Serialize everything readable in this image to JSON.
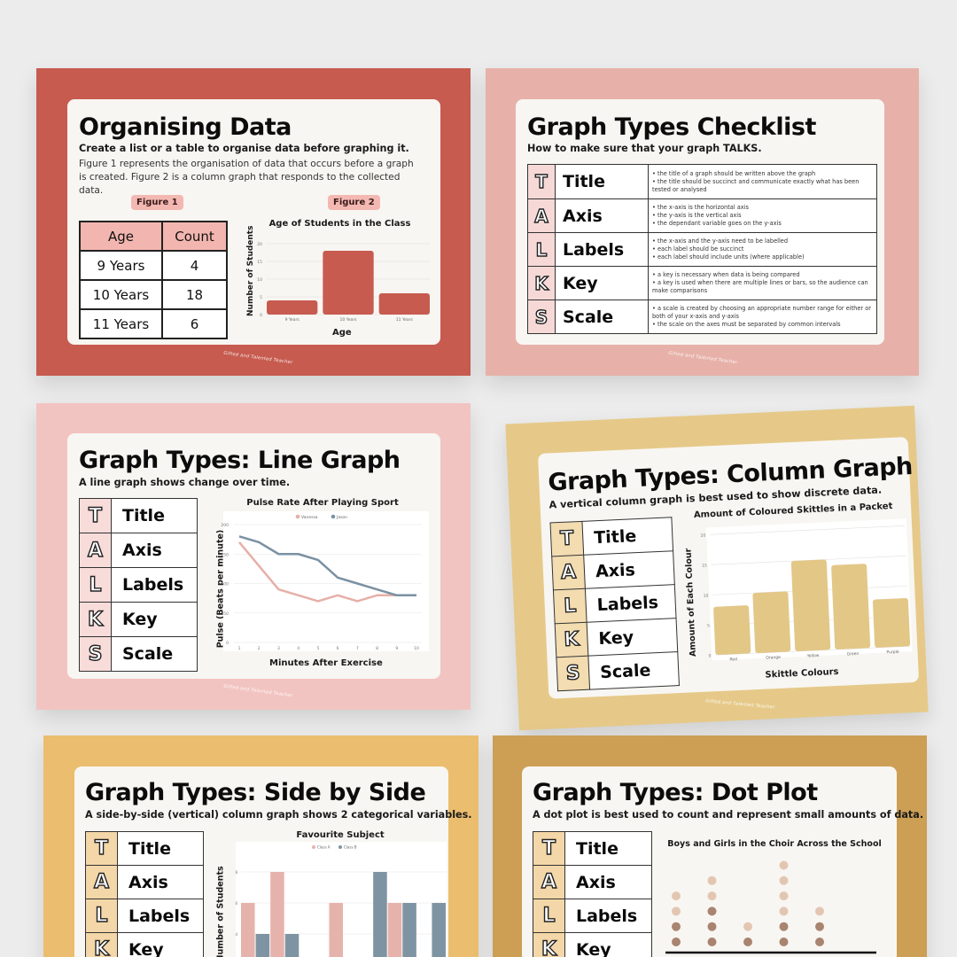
{
  "slides": {
    "organising": {
      "title": "Organising Data",
      "subtitle": "Create a list or a table to organise data before graphing it.",
      "paragraph": "Figure 1 represents the organisation of data that occurs before a graph is created. Figure 2 is a column graph that responds to the collected data.",
      "figure1_label": "Figure 1",
      "figure2_label": "Figure 2",
      "table": {
        "headers": [
          "Age",
          "Count"
        ],
        "rows": [
          [
            "9 Years",
            "4"
          ],
          [
            "10 Years",
            "18"
          ],
          [
            "11 Years",
            "6"
          ]
        ]
      },
      "footer": "Gifted and Talented Teacher",
      "bg_color": "#c75b4f"
    },
    "checklist": {
      "title": "Graph Types Checklist",
      "subtitle": "How to make sure that your graph TALKS.",
      "rows": [
        {
          "letter": "T",
          "word": "Title",
          "points": [
            "the title of a graph should be written above the graph",
            "the title should be succinct and communicate exactly what has been tested or analysed"
          ]
        },
        {
          "letter": "A",
          "word": "Axis",
          "points": [
            "the x-axis is the horizontal axis",
            "the y-axis is the vertical axis",
            "the dependant variable goes on the y-axis"
          ]
        },
        {
          "letter": "L",
          "word": "Labels",
          "points": [
            "the x-axis and the y-axis need to be labelled",
            "each label should be succinct",
            "each label should include units (where applicable)"
          ]
        },
        {
          "letter": "K",
          "word": "Key",
          "points": [
            "a key is necessary when data is being compared",
            "a key is used when there are multiple lines or bars, so the audience can make comparisons"
          ]
        },
        {
          "letter": "S",
          "word": "Scale",
          "points": [
            "a scale is created by choosing an appropriate number range for either or both of your x-axis and y-axis",
            "the scale on the axes must be separated by common intervals"
          ]
        }
      ],
      "footer": "Gifted and Talented Teacher",
      "bg_color": "#e7b1a9"
    },
    "line": {
      "title": "Graph Types: Line Graph",
      "subtitle": "A line graph shows change over time.",
      "talks": [
        "T",
        "A",
        "L",
        "K",
        "S"
      ],
      "talks_words": [
        "Title",
        "Axis",
        "Labels",
        "Key",
        "Scale"
      ],
      "footer": "Gifted and Talented Teacher",
      "bg_color": "#f2c4c1"
    },
    "column": {
      "title": "Graph Types: Column Graph",
      "subtitle": "A vertical column graph is best used to show discrete data.",
      "talks": [
        "T",
        "A",
        "L",
        "K",
        "S"
      ],
      "talks_words": [
        "Title",
        "Axis",
        "Labels",
        "Key",
        "Scale"
      ],
      "footer": "Gifted and Talented Teacher",
      "bg_color": "#e6c989"
    },
    "sidebyside": {
      "title": "Graph Types: Side by Side",
      "subtitle": "A side-by-side (vertical) column graph shows 2 categorical variables.",
      "talks": [
        "T",
        "A",
        "L",
        "K"
      ],
      "talks_words": [
        "Title",
        "Axis",
        "Labels",
        "Key"
      ],
      "bg_color": "#ebbd6e"
    },
    "dotplot": {
      "title": "Graph Types: Dot Plot",
      "subtitle": "A dot plot is best used to count and represent small amounts of data.",
      "talks": [
        "T",
        "A",
        "L",
        "K"
      ],
      "talks_words": [
        "Title",
        "Axis",
        "Labels",
        "Key"
      ],
      "bg_color": "#cc9f55"
    }
  },
  "chart_data": [
    {
      "type": "bar",
      "title": "Age of Students in the Class",
      "xlabel": "Age",
      "ylabel": "Number of Students",
      "categories": [
        "9 Years",
        "10 Years",
        "11 Years"
      ],
      "values": [
        4,
        18,
        6
      ],
      "ylim": [
        0,
        20
      ],
      "yticks": [
        0,
        5,
        10,
        15,
        20
      ],
      "color": "#c75b4f"
    },
    {
      "type": "line",
      "title": "Pulse Rate After Playing Sport",
      "xlabel": "Minutes After Exercise",
      "ylabel": "Pulse (Beats per minute)",
      "x": [
        1,
        2,
        3,
        4,
        5,
        6,
        7,
        8,
        9,
        10
      ],
      "series": [
        {
          "name": "Vanessa",
          "values": [
            170,
            130,
            90,
            80,
            70,
            80,
            70,
            80,
            80,
            80
          ],
          "color": "#e6b0a8"
        },
        {
          "name": "Jason",
          "values": [
            180,
            170,
            150,
            150,
            140,
            110,
            100,
            90,
            80,
            80
          ],
          "color": "#7a91a3"
        }
      ],
      "ylim": [
        0,
        200
      ],
      "yticks": [
        0,
        50,
        100,
        150,
        200
      ],
      "legend_position": "top"
    },
    {
      "type": "bar",
      "title": "Amount of Coloured Skittles in a Packet",
      "xlabel": "Skittle Colours",
      "ylabel": "Amount of Each Colour",
      "categories": [
        "Red",
        "Orange",
        "Yellow",
        "Green",
        "Purple"
      ],
      "values": [
        8,
        10,
        15,
        14,
        8
      ],
      "ylim": [
        0,
        20
      ],
      "yticks": [
        0,
        5,
        10,
        15,
        20
      ],
      "color": "#e3c787"
    },
    {
      "type": "bar",
      "title": "Favourite Subject",
      "ylabel": "Number of Students",
      "series": [
        {
          "name": "Class A",
          "values": [
            6,
            8,
            2,
            6,
            0,
            6,
            0
          ],
          "color": "#e6b3ac"
        },
        {
          "name": "Class B",
          "values": [
            4,
            4,
            0,
            2,
            8,
            6,
            6
          ],
          "color": "#7f94a3"
        }
      ],
      "yticks": [
        2,
        4,
        6,
        8
      ],
      "legend_position": "top"
    },
    {
      "type": "scatter",
      "title": "Boys and Girls in the Choir Across the School",
      "columns": [
        {
          "dark": 2,
          "light": 2
        },
        {
          "dark": 3,
          "light": 2
        },
        {
          "dark": 1,
          "light": 1
        },
        {
          "dark": 2,
          "light": 4
        },
        {
          "dark": 2,
          "light": 1
        }
      ],
      "colors": {
        "dark": "#a98470",
        "light": "#e3c6b2"
      }
    }
  ]
}
